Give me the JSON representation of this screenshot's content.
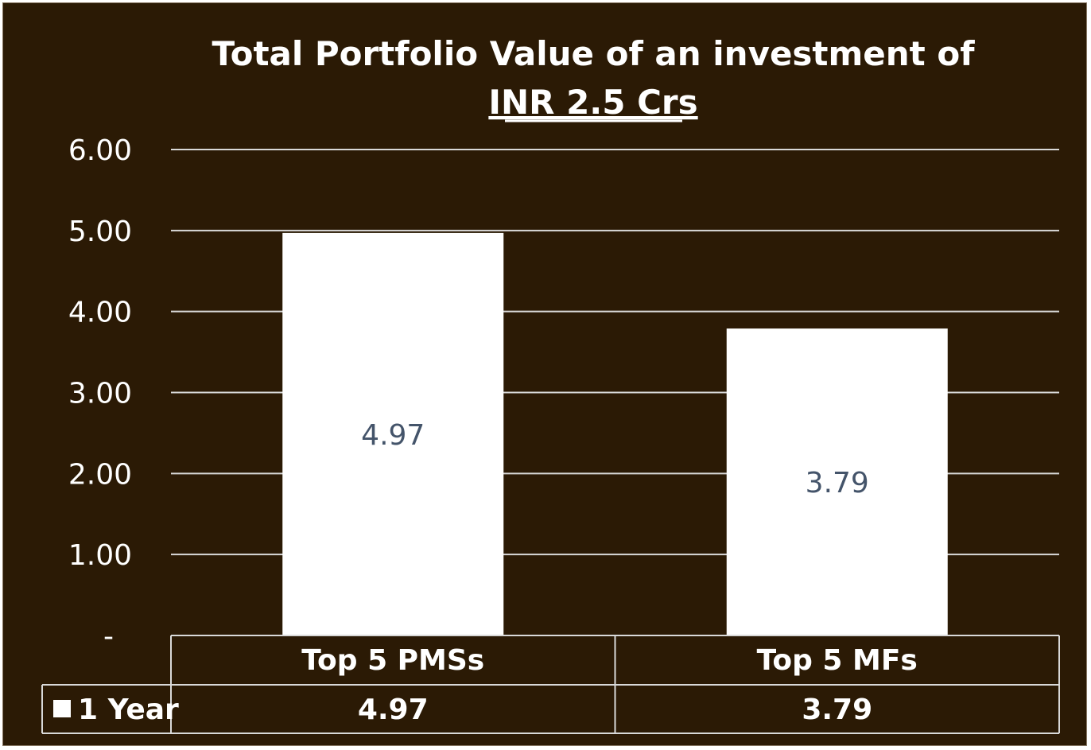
{
  "chart_data": {
    "type": "bar",
    "title": [
      "Total Portfolio Value of an investment of",
      "INR 2.5 Crs"
    ],
    "categories": [
      "Top 5 PMSs",
      "Top 5 MFs"
    ],
    "series": [
      {
        "name": "1 Year",
        "values": [
          4.97,
          3.79
        ]
      }
    ],
    "data_labels": [
      "4.97",
      "3.79"
    ],
    "y_ticks": [
      "-",
      "1.00",
      "2.00",
      "3.00",
      "4.00",
      "5.00",
      "6.00"
    ],
    "ylim": [
      0,
      6
    ],
    "grid": true,
    "data_table": true,
    "colors": {
      "background": "#2b1a05",
      "bar": "#ffffff",
      "text": "#ffffff",
      "data_label": "#44546a",
      "grid": "#d9d9d9"
    }
  }
}
